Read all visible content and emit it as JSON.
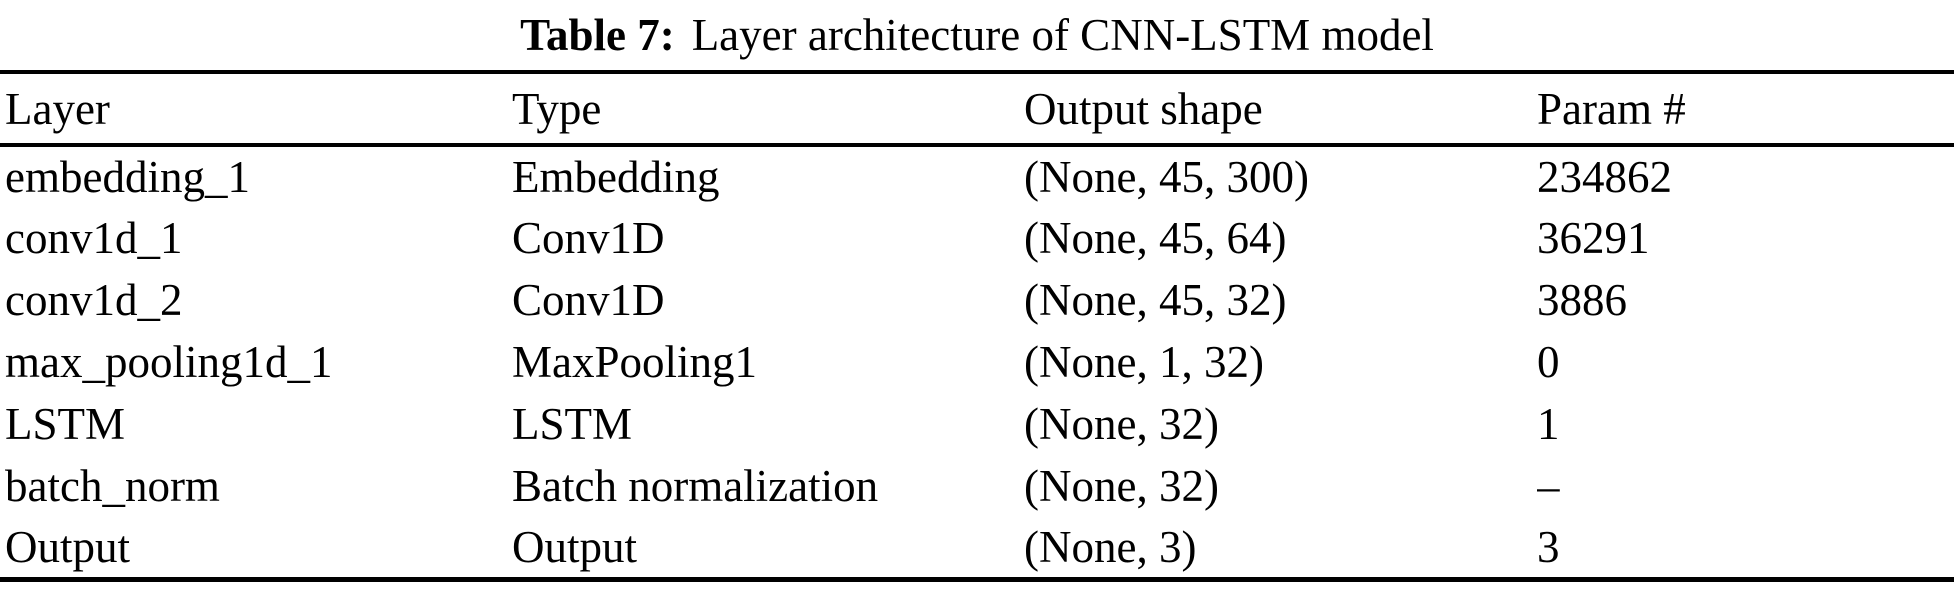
{
  "caption": {
    "label": "Table 7:",
    "text": "Layer architecture of CNN-LSTM model"
  },
  "table": {
    "columns": [
      "Layer",
      "Type",
      "Output shape",
      "Param #"
    ],
    "rows": [
      {
        "layer": "embedding_1",
        "type": "Embedding",
        "output_shape": "(None, 45, 300)",
        "params": "234862"
      },
      {
        "layer": "conv1d_1",
        "type": "Conv1D",
        "output_shape": "(None, 45, 64)",
        "params": "36291"
      },
      {
        "layer": "conv1d_2",
        "type": "Conv1D",
        "output_shape": "(None, 45, 32)",
        "params": "3886"
      },
      {
        "layer": "max_pooling1d_1",
        "type": "MaxPooling1",
        "output_shape": "(None, 1, 32)",
        "params": "0"
      },
      {
        "layer": "LSTM",
        "type": "LSTM",
        "output_shape": "(None, 32)",
        "params": "1"
      },
      {
        "layer": "batch_norm",
        "type": "Batch normalization",
        "output_shape": "(None, 32)",
        "params": "–"
      },
      {
        "layer": "Output",
        "type": "Output",
        "output_shape": "(None, 3)",
        "params": "3"
      }
    ]
  },
  "colors": {
    "text": "#000000",
    "rule": "#000000",
    "background": "#ffffff"
  }
}
